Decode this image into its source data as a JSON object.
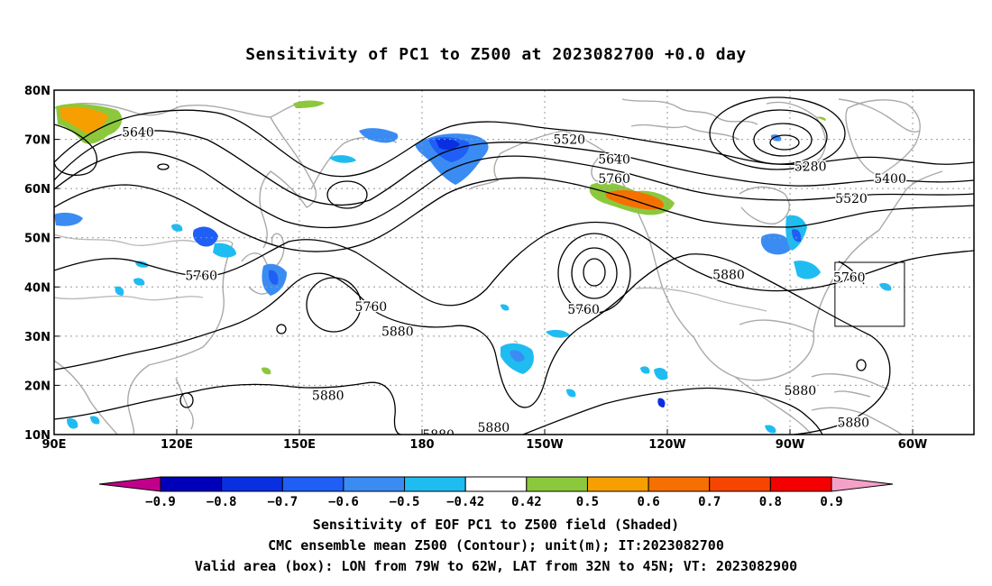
{
  "title": "Sensitivity of PC1 to Z500 at 2023082700 +0.0 day",
  "map": {
    "lat_labels": [
      "80N",
      "70N",
      "60N",
      "50N",
      "40N",
      "30N",
      "20N",
      "10N"
    ],
    "lon_labels": [
      "90E",
      "120E",
      "150E",
      "180",
      "150W",
      "120W",
      "90W",
      "60W"
    ],
    "contour_labels": [
      {
        "text": "5640",
        "lon": 110.5,
        "lat": 71.5
      },
      {
        "text": "5520",
        "lon": -144,
        "lat": 70
      },
      {
        "text": "5640",
        "lon": -133,
        "lat": 66
      },
      {
        "text": "5760",
        "lon": -133,
        "lat": 62
      },
      {
        "text": "5280",
        "lon": -85,
        "lat": 64.5
      },
      {
        "text": "5400",
        "lon": -65.5,
        "lat": 62
      },
      {
        "text": "5520",
        "lon": -75,
        "lat": 58
      },
      {
        "text": "5880",
        "lon": -105,
        "lat": 42.5
      },
      {
        "text": "5760",
        "lon": -75.5,
        "lat": 42
      },
      {
        "text": "5760",
        "lon": 126,
        "lat": 42.3
      },
      {
        "text": "5760",
        "lon": 167.5,
        "lat": 36
      },
      {
        "text": "5760",
        "lon": -140.5,
        "lat": 35.5
      },
      {
        "text": "5880",
        "lon": 174,
        "lat": 31
      },
      {
        "text": "5880",
        "lon": 157,
        "lat": 18
      },
      {
        "text": "5880",
        "lon": -87.5,
        "lat": 19
      },
      {
        "text": "5880",
        "lon": -162.5,
        "lat": 11.5
      },
      {
        "text": "5880",
        "lon": -74.5,
        "lat": 12.5
      },
      {
        "text": "5880",
        "lon": -176,
        "lat": 10
      }
    ],
    "valid_box": {
      "lon_min": -79,
      "lon_max": -62,
      "lat_min": 32,
      "lat_max": 45
    }
  },
  "colorbar": {
    "labels": [
      "−0.9",
      "−0.8",
      "−0.7",
      "−0.6",
      "−0.5",
      "−0.42",
      "0.42",
      "0.5",
      "0.6",
      "0.7",
      "0.8",
      "0.9"
    ],
    "colors": [
      "#c0008a",
      "#0000bb",
      "#0a2fe0",
      "#1f5ff5",
      "#3b8cf2",
      "#1fbcf2",
      "#ffffff",
      "#8cc83c",
      "#f5a000",
      "#f57000",
      "#f54500",
      "#f50000",
      "#f5a0c8"
    ]
  },
  "footer": {
    "line1": "Sensitivity of EOF PC1 to Z500 field (Shaded)",
    "line2": "CMC ensemble mean Z500 (Contour); unit(m); IT:2023082700",
    "line3": "Valid area (box): LON from 79W to 62W, LAT from 32N to 45N; VT: 2023082900"
  }
}
